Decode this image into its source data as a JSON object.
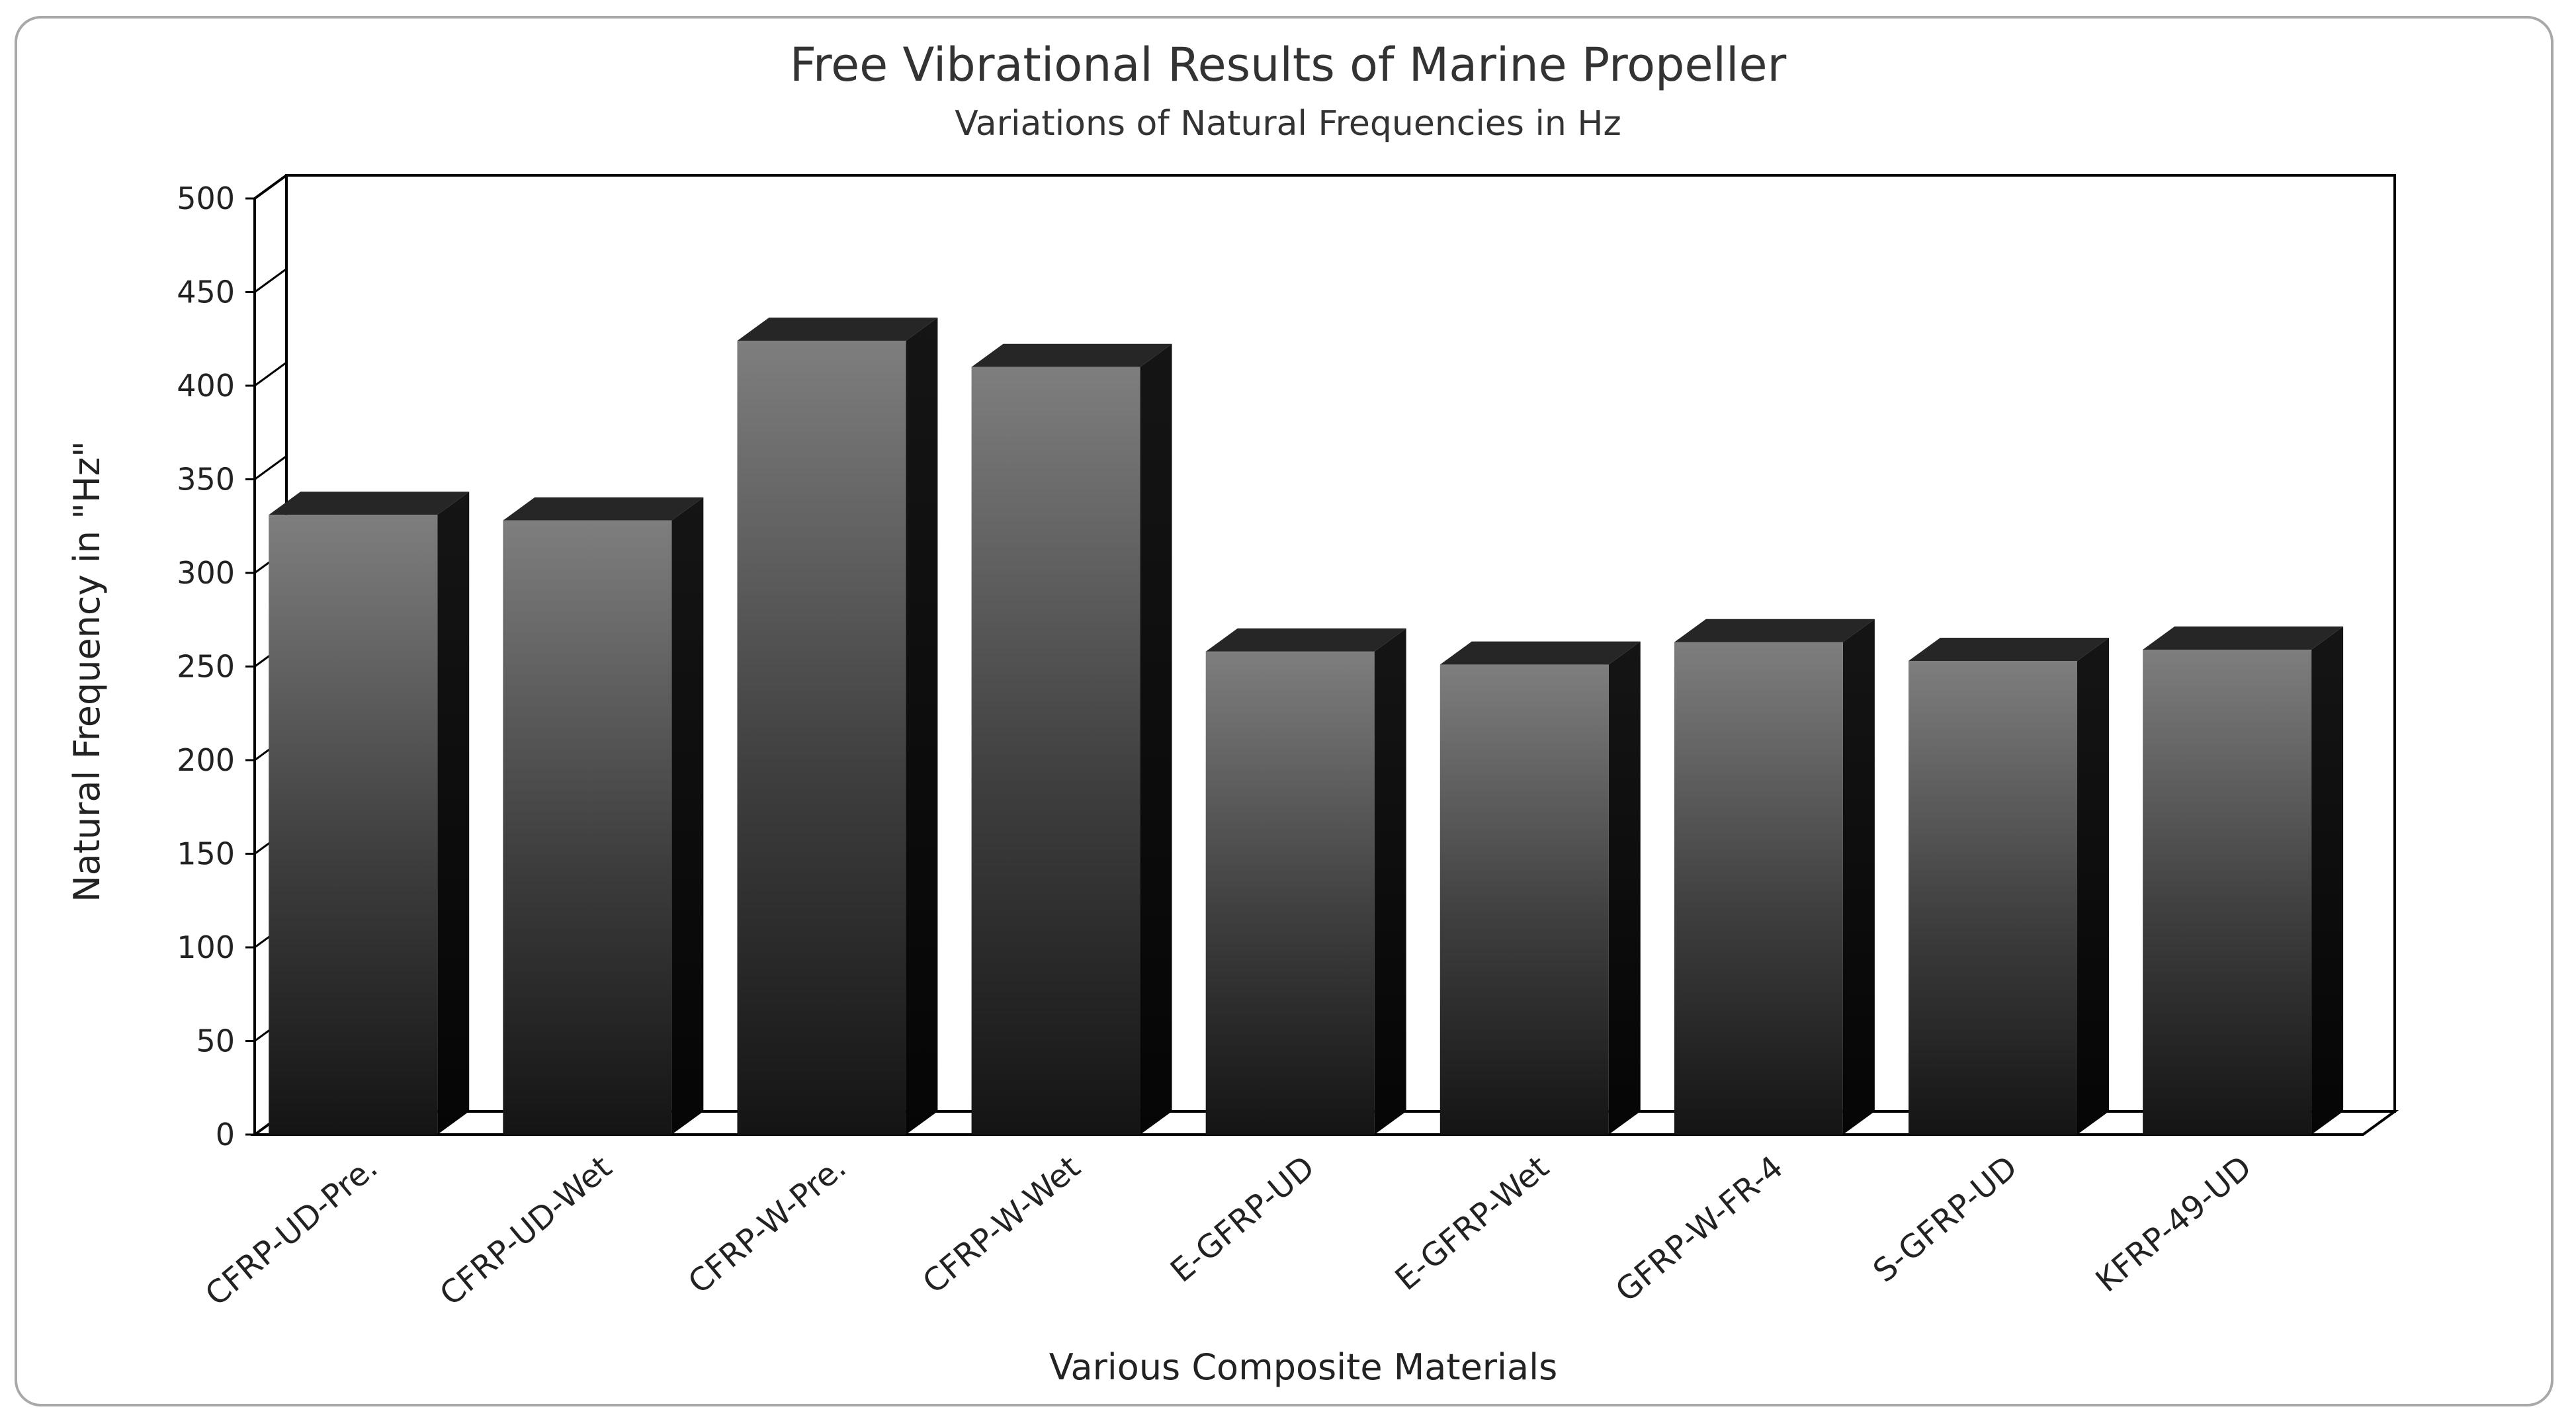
{
  "chart_data": {
    "type": "bar",
    "title": "Free Vibrational Results of  Marine Propeller",
    "subtitle": "Variations of Natural Frequencies in Hz",
    "xlabel": "Various Composite Materials",
    "ylabel": "Natural Frequency  in \"Hz\"",
    "ylim": [
      0,
      500
    ],
    "yticks": [
      0,
      50,
      100,
      150,
      200,
      250,
      300,
      350,
      400,
      450,
      500
    ],
    "ytick_labels": [
      "0",
      "50",
      "100",
      "150",
      "200",
      "250",
      "300",
      "350",
      "400",
      "450",
      "500"
    ],
    "categories": [
      "CFRP-UD-Pre.",
      "CFRP-UD-Wet",
      "CFRP-W-Pre.",
      "CFRP-W-Wet",
      "E-GFRP-UD",
      "E-GFRP-Wet",
      "GFRP-W-FR-4",
      "S-GFRP-UD",
      "KFRP-49-UD"
    ],
    "values": [
      331,
      328,
      424,
      410,
      258,
      251,
      263,
      253,
      259
    ],
    "grid": false,
    "legend": "none",
    "style": "3d-column",
    "bar_color": "#4a4a4a"
  }
}
